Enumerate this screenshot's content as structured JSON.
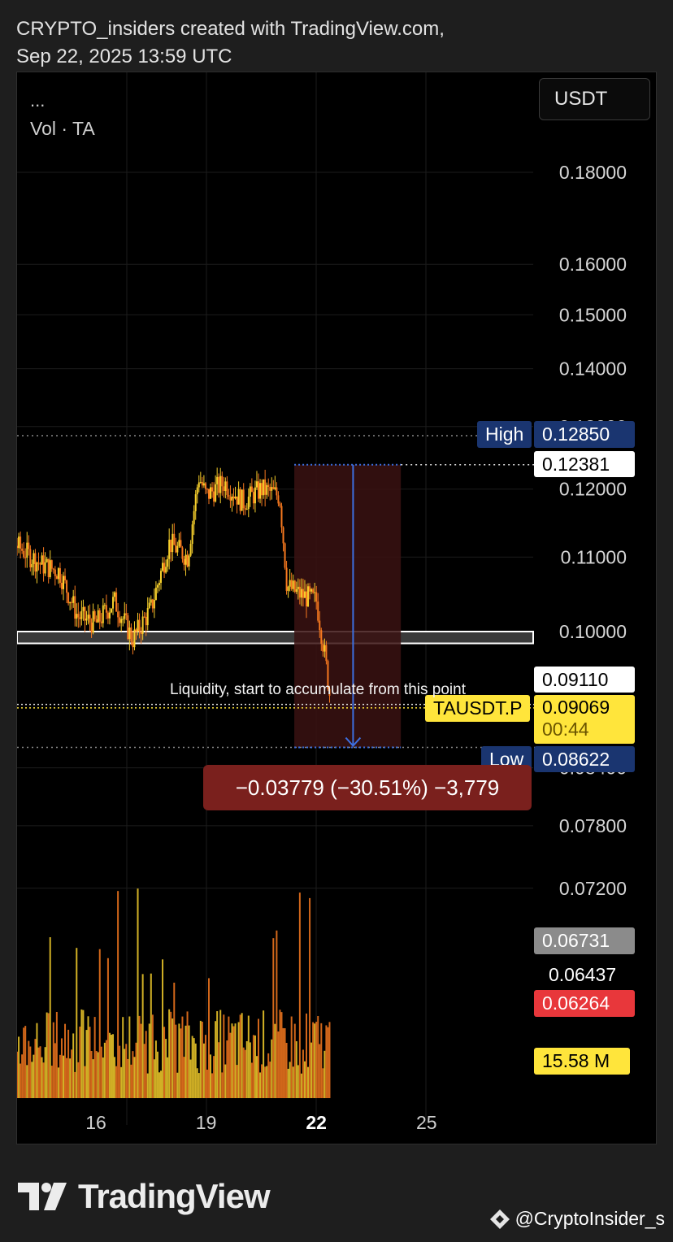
{
  "header": {
    "line1": "CRYPTO_insiders created with TradingView.com,",
    "line2": "Sep 22, 2025 13:59 UTC"
  },
  "chart_panel": {
    "menu_dots": "...",
    "indicator_label": "Vol · TA",
    "currency_button": "USDT"
  },
  "price_scale": {
    "ticks": [
      "0.18000",
      "0.16000",
      "0.15000",
      "0.14000",
      "0.13000",
      "0.12000",
      "0.11000",
      "0.10000",
      "0.08400",
      "0.07800",
      "0.07200"
    ],
    "high_label": "High",
    "high_value": "0.12850",
    "top_value": "0.12381",
    "level_value": "0.09110",
    "symbol": "TAUSDT.P",
    "last_value": "0.09069",
    "countdown": "00:44",
    "low_label": "Low",
    "low_value": "0.08622",
    "extra_values": [
      "0.06731",
      "0.06437",
      "0.06264"
    ],
    "volume_value": "15.58 M"
  },
  "time_axis": {
    "ticks": [
      "16",
      "19",
      "22",
      "25"
    ]
  },
  "annotations": {
    "liquidity_note": "Liquidity, start to accumulate from this point",
    "measure_label": "−0.03779 (−30.51%) −3,779"
  },
  "colors": {
    "background": "#000000",
    "candle_up": "#f7d02c",
    "candle_down": "#f7791f",
    "measure_box": "#3a1212",
    "measure_label_bg": "#7a201d",
    "arrow": "#3c6fe0",
    "high_low_bg": "#1a3570",
    "price_tag_yellow": "#ffe53b",
    "red_tag": "#e8373b",
    "grey_tag": "#8b8b8b"
  },
  "chart_data": {
    "type": "candlestick",
    "symbol": "TAUSDT.P",
    "x_range": [
      "Sep 13, 2025",
      "Sep 27, 2025"
    ],
    "y_range": [
      0.066,
      0.19
    ],
    "y_scale": "log",
    "x_ticks": [
      "16",
      "19",
      "22",
      "25"
    ],
    "key_levels": {
      "high": 0.1285,
      "measure_start": 0.12381,
      "support_zone": [
        0.0985,
        0.1
      ],
      "liquidity": 0.0911,
      "last": 0.09069,
      "low": 0.08622
    },
    "measurement": {
      "change": -0.03779,
      "percent": -30.51,
      "ticks": -3779
    },
    "price_path": [
      [
        "Sep 13",
        0.121
      ],
      [
        "Sep 13.5",
        0.113
      ],
      [
        "Sep 14",
        0.111
      ],
      [
        "Sep 14.5",
        0.109
      ],
      [
        "Sep 15",
        0.108
      ],
      [
        "Sep 15.5",
        0.102
      ],
      [
        "Sep 16",
        0.101
      ],
      [
        "Sep 16.5",
        0.104
      ],
      [
        "Sep 17",
        0.099
      ],
      [
        "Sep 17.5",
        0.103
      ],
      [
        "Sep 18",
        0.112
      ],
      [
        "Sep 18.5",
        0.11
      ],
      [
        "Sep 18.8",
        0.122
      ],
      [
        "Sep 19",
        0.119
      ],
      [
        "Sep 19.5",
        0.121
      ],
      [
        "Sep 20",
        0.118
      ],
      [
        "Sep 20.5",
        0.12
      ],
      [
        "Sep 21",
        0.119
      ],
      [
        "Sep 21.2",
        0.106
      ],
      [
        "Sep 21.5",
        0.105
      ],
      [
        "Sep 22",
        0.104
      ],
      [
        "Sep 22.2",
        0.098
      ],
      [
        "Sep 22.4",
        0.091
      ]
    ],
    "volume_note": "volume histogram along bottom of pane"
  }
}
